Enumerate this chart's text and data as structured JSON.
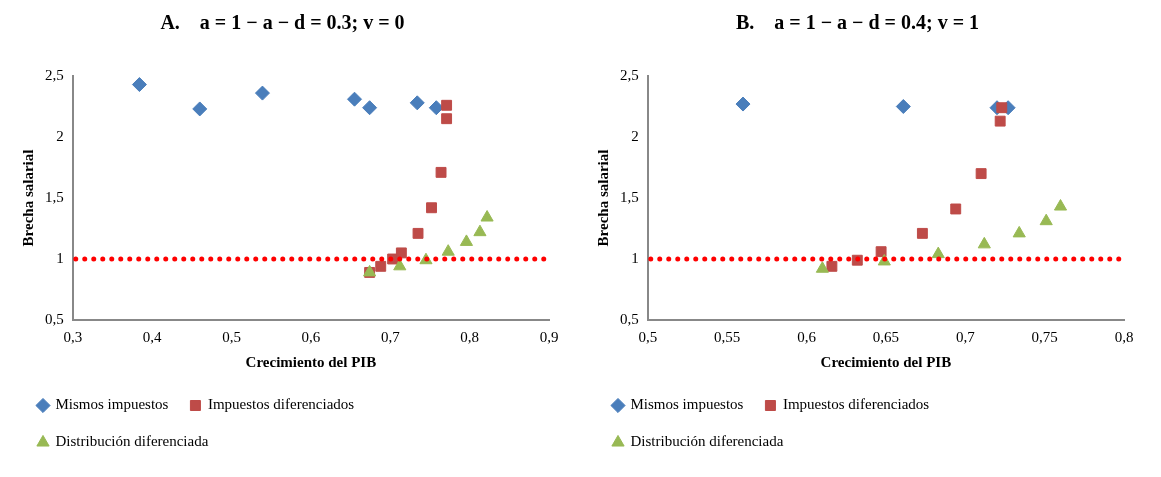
{
  "chart_data": [
    {
      "type": "scatter",
      "title": "A.    a = 1 − a − d = 0.3; v = 0",
      "xlabel": "Crecimiento del PIB",
      "ylabel": "Brecha salarial",
      "xlim": [
        0.3,
        0.9
      ],
      "xticks": [
        {
          "value": 0.3,
          "label": "0,3"
        },
        {
          "value": 0.4,
          "label": "0,4"
        },
        {
          "value": 0.5,
          "label": "0,5"
        },
        {
          "value": 0.6,
          "label": "0,6"
        },
        {
          "value": 0.7,
          "label": "0,7"
        },
        {
          "value": 0.8,
          "label": "0,8"
        },
        {
          "value": 0.9,
          "label": "0,9"
        }
      ],
      "ylim": [
        0.5,
        2.5
      ],
      "yticks": [
        {
          "value": 0.5,
          "label": "0,5"
        },
        {
          "value": 1,
          "label": "1"
        },
        {
          "value": 1.5,
          "label": "1,5"
        },
        {
          "value": 2,
          "label": "2"
        },
        {
          "value": 2.5,
          "label": "2,5"
        }
      ],
      "grid": false,
      "legend": "bottom",
      "ref_lines": [
        {
          "axis": "y",
          "value": 1,
          "color": "#ff0000",
          "line_style": "dotted"
        }
      ],
      "series": [
        {
          "name": "Mismos impuestos",
          "color": "#4a7ebb",
          "marker": "diamond",
          "x": [
            0.384,
            0.46,
            0.539,
            0.655,
            0.674,
            0.734,
            0.758
          ],
          "values": [
            2.43,
            2.23,
            2.36,
            2.31,
            2.24,
            2.28,
            2.24
          ]
        },
        {
          "name": "Impuestos diferenciados",
          "color": "#be4b48",
          "marker": "square",
          "x": [
            0.674,
            0.688,
            0.703,
            0.714,
            0.735,
            0.752,
            0.764,
            0.771,
            0.771
          ],
          "values": [
            0.89,
            0.94,
            1.0,
            1.05,
            1.21,
            1.42,
            1.71,
            2.15,
            2.26
          ]
        },
        {
          "name": "Distribución diferenciada",
          "color": "#98b954",
          "marker": "triangle",
          "x": [
            0.674,
            0.712,
            0.745,
            0.773,
            0.796,
            0.813,
            0.822
          ],
          "values": [
            0.89,
            0.94,
            0.99,
            1.06,
            1.14,
            1.22,
            1.34
          ]
        }
      ]
    },
    {
      "type": "scatter",
      "title": "B.    a = 1 − a − d = 0.4; v = 1",
      "xlabel": "Crecimiento del PIB",
      "ylabel": "Brecha salarial",
      "xlim": [
        0.5,
        0.8
      ],
      "xticks": [
        {
          "value": 0.5,
          "label": "0,5"
        },
        {
          "value": 0.55,
          "label": "0,55"
        },
        {
          "value": 0.6,
          "label": "0,6"
        },
        {
          "value": 0.65,
          "label": "0,65"
        },
        {
          "value": 0.7,
          "label": "0,7"
        },
        {
          "value": 0.75,
          "label": "0,75"
        },
        {
          "value": 0.8,
          "label": "0,8"
        }
      ],
      "ylim": [
        0.5,
        2.5
      ],
      "yticks": [
        {
          "value": 0.5,
          "label": "0,5"
        },
        {
          "value": 1,
          "label": "1"
        },
        {
          "value": 1.5,
          "label": "1,5"
        },
        {
          "value": 2,
          "label": "2"
        },
        {
          "value": 2.5,
          "label": "2,5"
        }
      ],
      "grid": false,
      "legend": "bottom",
      "ref_lines": [
        {
          "axis": "y",
          "value": 1,
          "color": "#ff0000",
          "line_style": "dotted"
        }
      ],
      "series": [
        {
          "name": "Mismos impuestos",
          "color": "#4a7ebb",
          "marker": "diamond",
          "x": [
            0.56,
            0.661,
            0.72,
            0.727
          ],
          "values": [
            2.27,
            2.25,
            2.24,
            2.24
          ]
        },
        {
          "name": "Impuestos diferenciados",
          "color": "#be4b48",
          "marker": "square",
          "x": [
            0.616,
            0.632,
            0.647,
            0.673,
            0.694,
            0.71,
            0.722,
            0.723
          ],
          "values": [
            0.94,
            0.99,
            1.06,
            1.21,
            1.41,
            1.7,
            2.13,
            2.24
          ]
        },
        {
          "name": "Distribución diferenciada",
          "color": "#98b954",
          "marker": "triangle",
          "x": [
            0.61,
            0.649,
            0.683,
            0.712,
            0.734,
            0.751,
            0.76
          ],
          "values": [
            0.92,
            0.98,
            1.04,
            1.12,
            1.21,
            1.31,
            1.43
          ]
        }
      ]
    }
  ]
}
